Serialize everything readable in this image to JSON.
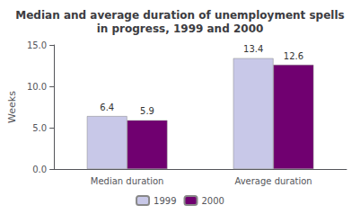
{
  "chart_data": {
    "type": "bar",
    "title": "Median and average duration of unemployment spells\nin progress, 1999 and 2000",
    "ylabel": "Weeks",
    "categories": [
      "Median duration",
      "Average duration"
    ],
    "series": [
      {
        "name": "1999",
        "color": "#c8c8e8",
        "values": [
          6.4,
          13.4
        ]
      },
      {
        "name": "2000",
        "color": "#700070",
        "values": [
          5.9,
          12.6
        ]
      }
    ],
    "ylim": [
      0,
      15.0
    ],
    "yticks": [
      {
        "value": 0.0,
        "label": "0.0"
      },
      {
        "value": 5.0,
        "label": "5.0"
      },
      {
        "value": 10.0,
        "label": "10.0"
      },
      {
        "value": 15.0,
        "label": "15.0"
      }
    ],
    "grid": false,
    "legend": "bottom",
    "data_labels": true
  }
}
